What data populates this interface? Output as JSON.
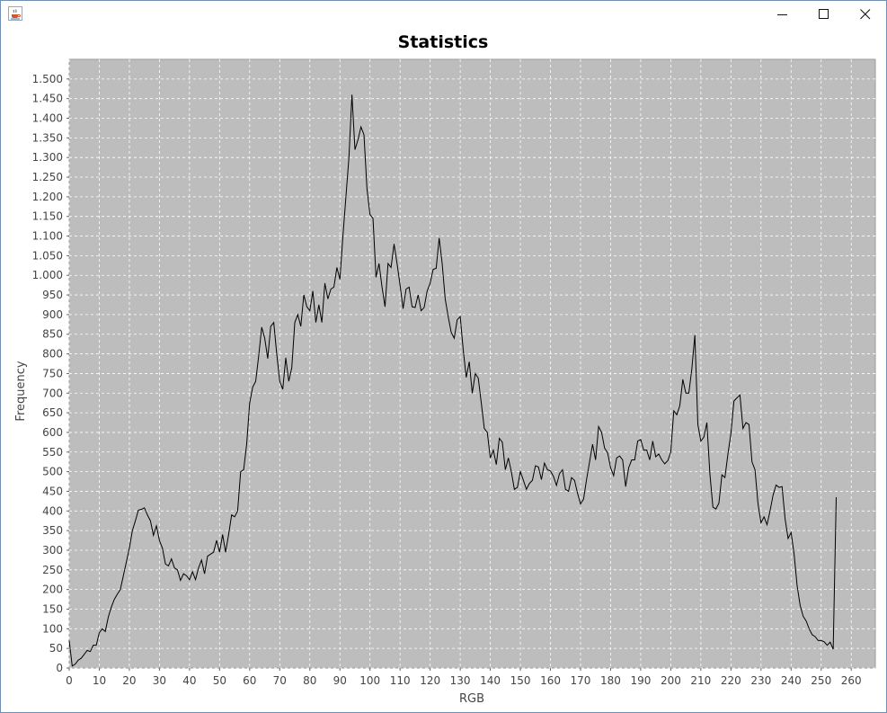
{
  "window": {
    "icon": "java-cup-icon",
    "controls": [
      "minimize-icon",
      "maximize-icon",
      "close-icon"
    ]
  },
  "colors": {
    "plot_background": "#bdbdbd",
    "gridline": "#ffffff",
    "series_line": "#000000",
    "axis_text": "#444444"
  },
  "chart_data": {
    "type": "line",
    "title": "Statistics",
    "xlabel": "RGB",
    "ylabel": "Frequency",
    "xlim": [
      0,
      268
    ],
    "ylim": [
      0,
      1550
    ],
    "x_ticks": [
      0,
      10,
      20,
      30,
      40,
      50,
      60,
      70,
      80,
      90,
      100,
      110,
      120,
      130,
      140,
      150,
      160,
      170,
      180,
      190,
      200,
      210,
      220,
      230,
      240,
      250,
      260
    ],
    "y_ticks": [
      0,
      50,
      100,
      150,
      200,
      250,
      300,
      350,
      400,
      450,
      500,
      550,
      600,
      650,
      700,
      750,
      800,
      850,
      900,
      950,
      1000,
      1050,
      1100,
      1150,
      1200,
      1250,
      1300,
      1350,
      1400,
      1450,
      1500
    ],
    "y_tick_labels": [
      "0",
      "50",
      "100",
      "150",
      "200",
      "250",
      "300",
      "350",
      "400",
      "450",
      "500",
      "550",
      "600",
      "650",
      "700",
      "750",
      "800",
      "850",
      "900",
      "950",
      "1.000",
      "1.050",
      "1.100",
      "1.150",
      "1.200",
      "1.250",
      "1.300",
      "1.350",
      "1.400",
      "1.450",
      "1.500"
    ],
    "grid": true,
    "legend": "none",
    "x": [
      0,
      1,
      2,
      3,
      4,
      5,
      6,
      7,
      8,
      9,
      10,
      11,
      12,
      13,
      14,
      15,
      16,
      17,
      18,
      19,
      20,
      21,
      22,
      23,
      24,
      25,
      26,
      27,
      28,
      29,
      30,
      31,
      32,
      33,
      34,
      35,
      36,
      37,
      38,
      39,
      40,
      41,
      42,
      43,
      44,
      45,
      46,
      47,
      48,
      49,
      50,
      51,
      52,
      53,
      54,
      55,
      56,
      57,
      58,
      59,
      60,
      61,
      62,
      63,
      64,
      65,
      66,
      67,
      68,
      69,
      70,
      71,
      72,
      73,
      74,
      75,
      76,
      77,
      78,
      79,
      80,
      81,
      82,
      83,
      84,
      85,
      86,
      87,
      88,
      89,
      90,
      91,
      92,
      93,
      94,
      95,
      96,
      97,
      98,
      99,
      100,
      101,
      102,
      103,
      104,
      105,
      106,
      107,
      108,
      109,
      110,
      111,
      112,
      113,
      114,
      115,
      116,
      117,
      118,
      119,
      120,
      121,
      122,
      123,
      124,
      125,
      126,
      127,
      128,
      129,
      130,
      131,
      132,
      133,
      134,
      135,
      136,
      137,
      138,
      139,
      140,
      141,
      142,
      143,
      144,
      145,
      146,
      147,
      148,
      149,
      150,
      151,
      152,
      153,
      154,
      155,
      156,
      157,
      158,
      159,
      160,
      161,
      162,
      163,
      164,
      165,
      166,
      167,
      168,
      169,
      170,
      171,
      172,
      173,
      174,
      175,
      176,
      177,
      178,
      179,
      180,
      181,
      182,
      183,
      184,
      185,
      186,
      187,
      188,
      189,
      190,
      191,
      192,
      193,
      194,
      195,
      196,
      197,
      198,
      199,
      200,
      201,
      202,
      203,
      204,
      205,
      206,
      207,
      208,
      209,
      210,
      211,
      212,
      213,
      214,
      215,
      216,
      217,
      218,
      219,
      220,
      221,
      222,
      223,
      224,
      225,
      226,
      227,
      228,
      229,
      230,
      231,
      232,
      233,
      234,
      235,
      236,
      237,
      238,
      239,
      240,
      241,
      242,
      243,
      244,
      245,
      246,
      247,
      248,
      249,
      250,
      251,
      252,
      253,
      254,
      255
    ],
    "series": [
      {
        "values": [
          70,
          5,
          10,
          20,
          25,
          35,
          45,
          42,
          58,
          58,
          90,
          100,
          93,
          130,
          155,
          175,
          188,
          200,
          235,
          270,
          305,
          350,
          375,
          402,
          404,
          408,
          390,
          375,
          338,
          362,
          325,
          305,
          265,
          260,
          278,
          255,
          250,
          223,
          240,
          235,
          225,
          245,
          225,
          255,
          275,
          240,
          285,
          290,
          295,
          325,
          295,
          340,
          295,
          340,
          390,
          385,
          400,
          500,
          505,
          570,
          675,
          715,
          730,
          795,
          868,
          840,
          788,
          870,
          880,
          800,
          730,
          710,
          790,
          730,
          765,
          880,
          900,
          870,
          950,
          920,
          910,
          960,
          880,
          925,
          880,
          980,
          940,
          965,
          970,
          1020,
          990,
          1100,
          1200,
          1300,
          1460,
          1320,
          1345,
          1378,
          1358,
          1220,
          1155,
          1145,
          995,
          1030,
          970,
          920,
          1030,
          1020,
          1080,
          1030,
          975,
          915,
          965,
          970,
          920,
          918,
          950,
          910,
          918,
          960,
          980,
          1015,
          1018,
          1095,
          1030,
          940,
          895,
          855,
          840,
          887,
          895,
          810,
          740,
          780,
          700,
          750,
          738,
          675,
          610,
          600,
          535,
          555,
          518,
          585,
          575,
          505,
          535,
          500,
          455,
          460,
          500,
          478,
          455,
          470,
          478,
          515,
          512,
          480,
          522,
          505,
          502,
          488,
          465,
          495,
          505,
          455,
          450,
          485,
          478,
          445,
          418,
          430,
          480,
          525,
          570,
          530,
          615,
          600,
          560,
          548,
          510,
          490,
          535,
          540,
          530,
          462,
          510,
          530,
          530,
          578,
          582,
          555,
          555,
          530,
          578,
          538,
          545,
          530,
          520,
          528,
          550,
          655,
          645,
          668,
          735,
          700,
          700,
          762,
          848,
          620,
          578,
          588,
          625,
          495,
          410,
          405,
          420,
          492,
          485,
          545,
          598,
          680,
          688,
          695,
          610,
          625,
          620,
          525,
          505,
          418,
          370,
          385,
          365,
          400,
          440,
          466,
          460,
          462,
          380,
          330,
          345,
          290,
          210,
          160,
          132,
          120,
          100,
          85,
          80,
          70,
          70,
          67,
          58,
          66,
          48,
          435
        ]
      }
    ]
  }
}
